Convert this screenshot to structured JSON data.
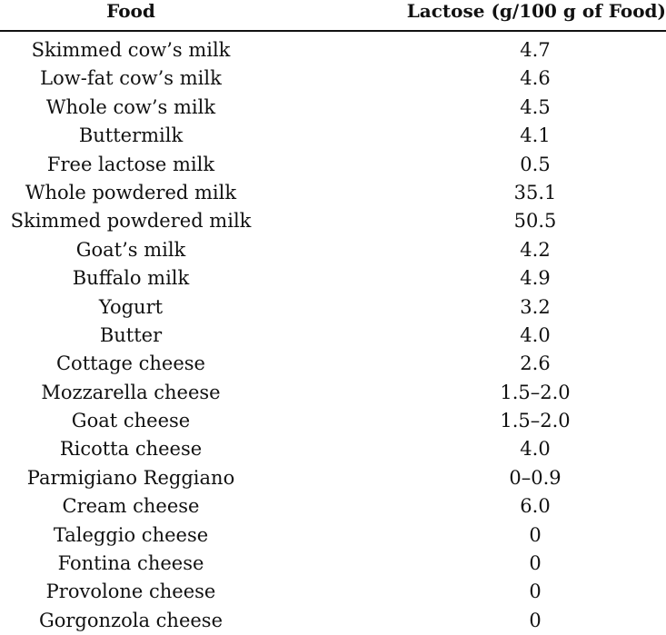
{
  "table": {
    "headers": {
      "food": "Food",
      "lactose": "Lactose (g/100 g of Food)"
    },
    "rows": [
      {
        "food": "Skimmed cow’s milk",
        "lactose": "4.7"
      },
      {
        "food": "Low-fat cow’s milk",
        "lactose": "4.6"
      },
      {
        "food": "Whole cow’s milk",
        "lactose": "4.5"
      },
      {
        "food": "Buttermilk",
        "lactose": "4.1"
      },
      {
        "food": "Free lactose milk",
        "lactose": "0.5"
      },
      {
        "food": "Whole powdered milk",
        "lactose": "35.1"
      },
      {
        "food": "Skimmed powdered milk",
        "lactose": "50.5"
      },
      {
        "food": "Goat’s milk",
        "lactose": "4.2"
      },
      {
        "food": "Buffalo milk",
        "lactose": "4.9"
      },
      {
        "food": "Yogurt",
        "lactose": "3.2"
      },
      {
        "food": "Butter",
        "lactose": "4.0"
      },
      {
        "food": "Cottage cheese",
        "lactose": "2.6"
      },
      {
        "food": "Mozzarella cheese",
        "lactose": "1.5–2.0"
      },
      {
        "food": "Goat cheese",
        "lactose": "1.5–2.0"
      },
      {
        "food": "Ricotta cheese",
        "lactose": "4.0"
      },
      {
        "food": "Parmigiano Reggiano",
        "lactose": "0–0.9"
      },
      {
        "food": "Cream cheese",
        "lactose": "6.0"
      },
      {
        "food": "Taleggio cheese",
        "lactose": "0"
      },
      {
        "food": "Fontina cheese",
        "lactose": "0"
      },
      {
        "food": "Provolone cheese",
        "lactose": "0"
      },
      {
        "food": "Gorgonzola cheese",
        "lactose": "0"
      }
    ]
  }
}
